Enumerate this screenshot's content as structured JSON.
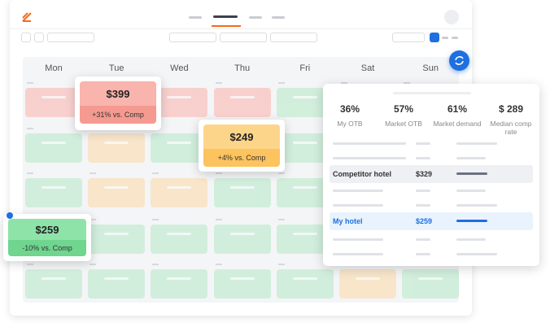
{
  "weekdays": [
    "Mon",
    "Tue",
    "Wed",
    "Thu",
    "Fri",
    "Sat",
    "Sun"
  ],
  "cards": [
    {
      "price": "$399",
      "delta": "+31% vs. Comp"
    },
    {
      "price": "$249",
      "delta": "+4% vs. Comp"
    },
    {
      "price": "$259",
      "delta": "-10% vs. Comp"
    }
  ],
  "stats": [
    {
      "value": "36%",
      "label": "My OTB"
    },
    {
      "value": "57%",
      "label": "Market OTB"
    },
    {
      "value": "61%",
      "label": "Market demand"
    },
    {
      "value": "$ 289",
      "label": "Median comp rate"
    }
  ],
  "rows": [
    {
      "name": "Competitor hotel",
      "price": "$329"
    },
    {
      "name": "My hotel",
      "price": "$259"
    }
  ]
}
